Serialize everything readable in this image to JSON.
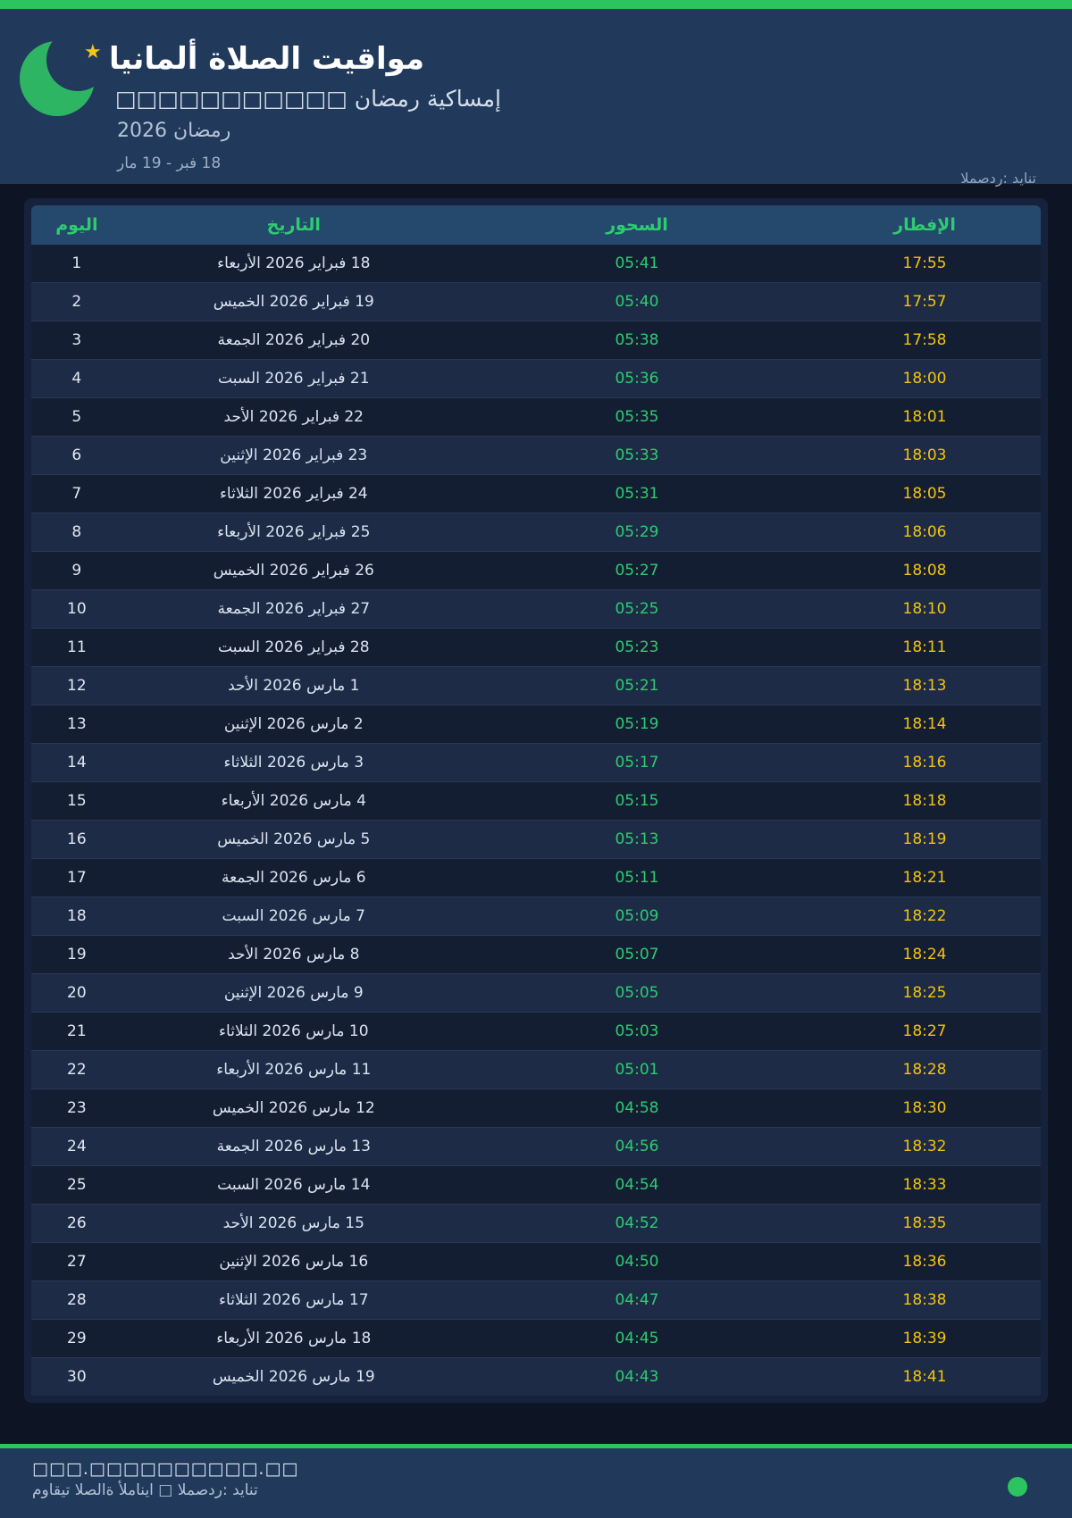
{
  "colors": {
    "accent_green": "#2bc45f",
    "suhoor_green": "#2ecc71",
    "iftar_yellow": "#f2c40f",
    "header_blue": "#21395b"
  },
  "header": {
    "title": "مواقيت الصلاة ألمانيا",
    "subtitle": "إمساكية رمضان □□□□□□□□□□□",
    "season": "رمضان 2026",
    "date_range": "18 فبر - 19 مار",
    "source": "المصدر: ديانت"
  },
  "table": {
    "columns": {
      "day": "اليوم",
      "date": "التاريخ",
      "suhoor": "السحور",
      "iftar": "الإفطار"
    },
    "rows": [
      {
        "day": "1",
        "date": "18 فبراير 2026 الأربعاء",
        "suhoor": "05:41",
        "iftar": "17:55"
      },
      {
        "day": "2",
        "date": "19 فبراير 2026 الخميس",
        "suhoor": "05:40",
        "iftar": "17:57"
      },
      {
        "day": "3",
        "date": "20 فبراير 2026 الجمعة",
        "suhoor": "05:38",
        "iftar": "17:58"
      },
      {
        "day": "4",
        "date": "21 فبراير 2026 السبت",
        "suhoor": "05:36",
        "iftar": "18:00"
      },
      {
        "day": "5",
        "date": "22 فبراير 2026 الأحد",
        "suhoor": "05:35",
        "iftar": "18:01"
      },
      {
        "day": "6",
        "date": "23 فبراير 2026 الإثنين",
        "suhoor": "05:33",
        "iftar": "18:03"
      },
      {
        "day": "7",
        "date": "24 فبراير 2026 الثلاثاء",
        "suhoor": "05:31",
        "iftar": "18:05"
      },
      {
        "day": "8",
        "date": "25 فبراير 2026 الأربعاء",
        "suhoor": "05:29",
        "iftar": "18:06"
      },
      {
        "day": "9",
        "date": "26 فبراير 2026 الخميس",
        "suhoor": "05:27",
        "iftar": "18:08"
      },
      {
        "day": "10",
        "date": "27 فبراير 2026 الجمعة",
        "suhoor": "05:25",
        "iftar": "18:10"
      },
      {
        "day": "11",
        "date": "28 فبراير 2026 السبت",
        "suhoor": "05:23",
        "iftar": "18:11"
      },
      {
        "day": "12",
        "date": "1 مارس 2026 الأحد",
        "suhoor": "05:21",
        "iftar": "18:13"
      },
      {
        "day": "13",
        "date": "2 مارس 2026 الإثنين",
        "suhoor": "05:19",
        "iftar": "18:14"
      },
      {
        "day": "14",
        "date": "3 مارس 2026 الثلاثاء",
        "suhoor": "05:17",
        "iftar": "18:16"
      },
      {
        "day": "15",
        "date": "4 مارس 2026 الأربعاء",
        "suhoor": "05:15",
        "iftar": "18:18"
      },
      {
        "day": "16",
        "date": "5 مارس 2026 الخميس",
        "suhoor": "05:13",
        "iftar": "18:19"
      },
      {
        "day": "17",
        "date": "6 مارس 2026 الجمعة",
        "suhoor": "05:11",
        "iftar": "18:21"
      },
      {
        "day": "18",
        "date": "7 مارس 2026 السبت",
        "suhoor": "05:09",
        "iftar": "18:22"
      },
      {
        "day": "19",
        "date": "8 مارس 2026 الأحد",
        "suhoor": "05:07",
        "iftar": "18:24"
      },
      {
        "day": "20",
        "date": "9 مارس 2026 الإثنين",
        "suhoor": "05:05",
        "iftar": "18:25"
      },
      {
        "day": "21",
        "date": "10 مارس 2026 الثلاثاء",
        "suhoor": "05:03",
        "iftar": "18:27"
      },
      {
        "day": "22",
        "date": "11 مارس 2026 الأربعاء",
        "suhoor": "05:01",
        "iftar": "18:28"
      },
      {
        "day": "23",
        "date": "12 مارس 2026 الخميس",
        "suhoor": "04:58",
        "iftar": "18:30"
      },
      {
        "day": "24",
        "date": "13 مارس 2026 الجمعة",
        "suhoor": "04:56",
        "iftar": "18:32"
      },
      {
        "day": "25",
        "date": "14 مارس 2026 السبت",
        "suhoor": "04:54",
        "iftar": "18:33"
      },
      {
        "day": "26",
        "date": "15 مارس 2026 الأحد",
        "suhoor": "04:52",
        "iftar": "18:35"
      },
      {
        "day": "27",
        "date": "16 مارس 2026 الإثنين",
        "suhoor": "04:50",
        "iftar": "18:36"
      },
      {
        "day": "28",
        "date": "17 مارس 2026 الثلاثاء",
        "suhoor": "04:47",
        "iftar": "18:38"
      },
      {
        "day": "29",
        "date": "18 مارس 2026 الأربعاء",
        "suhoor": "04:45",
        "iftar": "18:39"
      },
      {
        "day": "30",
        "date": "19 مارس 2026 الخميس",
        "suhoor": "04:43",
        "iftar": "18:41"
      }
    ]
  },
  "footer": {
    "url": "□□□.□□□□□□□□□□.□□",
    "credit": "مواقيت الصلاة ألمانيا □ المصدر: ديانت"
  }
}
